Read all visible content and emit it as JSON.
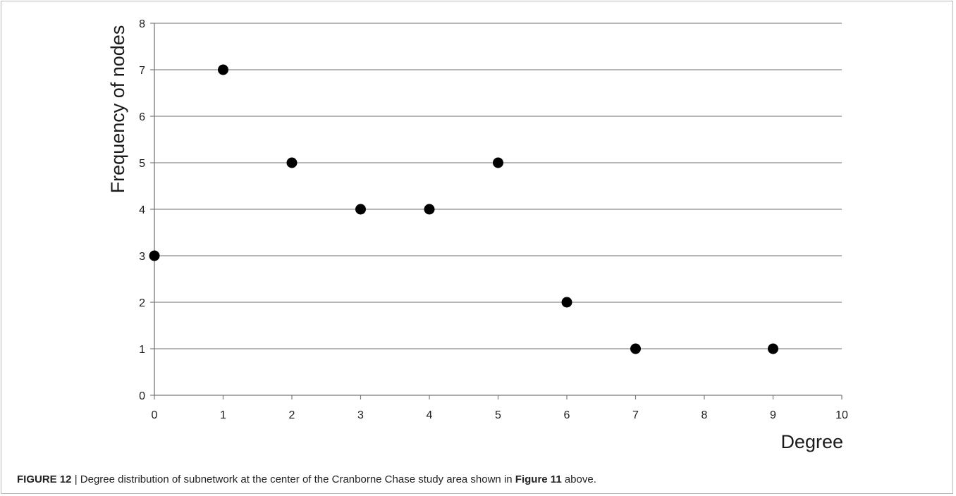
{
  "chart_data": {
    "type": "scatter",
    "xlabel": "Degree",
    "ylabel": "Frequency of nodes",
    "xlim": [
      0,
      10
    ],
    "ylim": [
      0,
      8
    ],
    "x_ticks": [
      "0",
      "1",
      "2",
      "3",
      "4",
      "5",
      "6",
      "7",
      "8",
      "9",
      "10"
    ],
    "y_ticks": [
      "0",
      "1",
      "2",
      "3",
      "4",
      "5",
      "6",
      "7",
      "8"
    ],
    "grid": "horizontal",
    "points": [
      {
        "x": 0,
        "y": 3
      },
      {
        "x": 1,
        "y": 7
      },
      {
        "x": 2,
        "y": 5
      },
      {
        "x": 3,
        "y": 4
      },
      {
        "x": 4,
        "y": 4
      },
      {
        "x": 5,
        "y": 5
      },
      {
        "x": 6,
        "y": 2
      },
      {
        "x": 7,
        "y": 1
      },
      {
        "x": 9,
        "y": 1
      }
    ],
    "marker_color": "#000000",
    "grid_color": "#8c8c8c"
  },
  "caption": {
    "label": "FIGURE 12",
    "separator": " | ",
    "text_before": "Degree distribution of subnetwork at the center of the Cranborne Chase study area shown in ",
    "ref": "Figure 11",
    "text_after": " above."
  }
}
